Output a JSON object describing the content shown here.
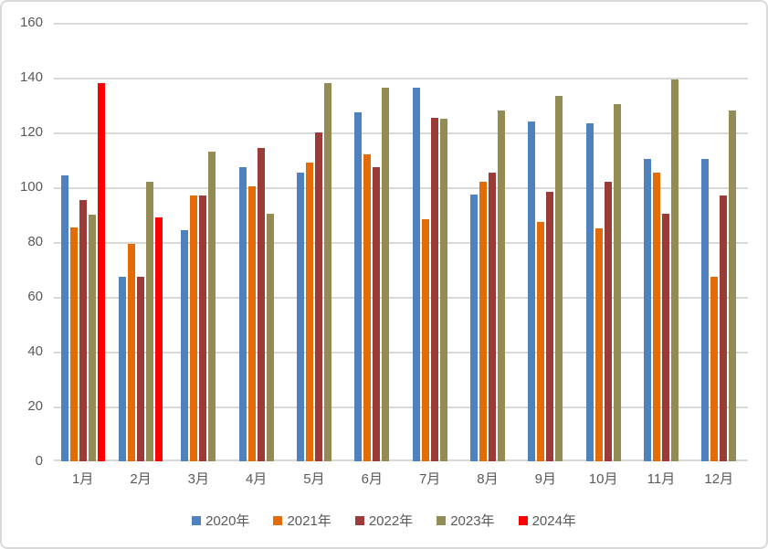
{
  "chart_data": {
    "type": "bar",
    "title": "",
    "xlabel": "",
    "ylabel": "",
    "categories": [
      "1月",
      "2月",
      "3月",
      "4月",
      "5月",
      "6月",
      "7月",
      "8月",
      "9月",
      "10月",
      "11月",
      "12月"
    ],
    "series": [
      {
        "name": "2020年",
        "color": "#4E81BD",
        "values": [
          104.5,
          67.5,
          84.5,
          107.5,
          105.5,
          127.5,
          136.5,
          97.5,
          124,
          123.5,
          110.5,
          110.5
        ]
      },
      {
        "name": "2021年",
        "color": "#E36C09",
        "values": [
          85.5,
          79.5,
          97,
          100.5,
          109,
          112,
          88.5,
          102,
          87.5,
          85,
          105.5,
          67.5
        ]
      },
      {
        "name": "2022年",
        "color": "#9A3B38",
        "values": [
          95.5,
          67.5,
          97,
          114.5,
          120,
          107.5,
          125.5,
          105.5,
          98.5,
          102,
          90.5,
          97
        ]
      },
      {
        "name": "2023年",
        "color": "#948A54",
        "values": [
          90,
          102,
          113,
          90.5,
          138,
          136.5,
          125,
          128,
          133.5,
          130.5,
          139.5,
          128
        ]
      },
      {
        "name": "2024年",
        "color": "#FF0000",
        "values": [
          138,
          89,
          null,
          null,
          null,
          null,
          null,
          null,
          null,
          null,
          null,
          null
        ]
      }
    ],
    "y_axis": {
      "min": 0,
      "max": 160,
      "step": 20,
      "ticks": [
        "0",
        "20",
        "40",
        "60",
        "80",
        "100",
        "120",
        "140",
        "160"
      ]
    },
    "ylim": [
      0,
      160
    ],
    "grid": true,
    "legend_position": "bottom",
    "colors": {
      "gridline": "#D9D9D9",
      "axis_text": "#595959",
      "background": "#FFFFFF",
      "border": "#D9D9D9"
    }
  }
}
